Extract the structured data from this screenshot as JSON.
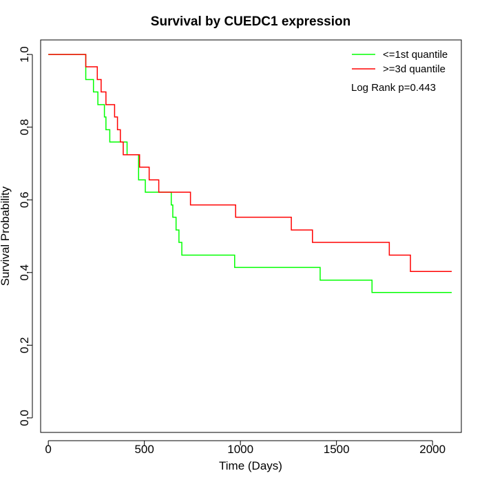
{
  "chart_data": {
    "type": "line",
    "title": "Survival by CUEDC1 expression",
    "xlabel": "Time (Days)",
    "ylabel": "Survival Probability",
    "xlim": [
      -40,
      2150
    ],
    "ylim": [
      -0.04,
      1.04
    ],
    "xticks": [
      0,
      500,
      1000,
      1500,
      2000
    ],
    "xtick_labels": [
      "0",
      "500",
      "1000",
      "1500",
      "2000"
    ],
    "yticks": [
      0.0,
      0.2,
      0.4,
      0.6,
      0.8,
      1.0
    ],
    "ytick_labels": [
      "0.0",
      "0.2",
      "0.4",
      "0.6",
      "0.8",
      "1.0"
    ],
    "grid": false,
    "legend_position": "top-right",
    "annotation": "Log Rank p=0.443",
    "series": [
      {
        "name": "<=1st quantile",
        "color": "#00ff00",
        "step": true,
        "x": [
          0,
          195,
          235,
          258,
          292,
          300,
          320,
          410,
          470,
          505,
          640,
          648,
          665,
          680,
          695,
          970,
          1415,
          1685,
          2100
        ],
        "y": [
          1.0,
          0.931,
          0.897,
          0.862,
          0.828,
          0.793,
          0.759,
          0.724,
          0.655,
          0.621,
          0.586,
          0.552,
          0.517,
          0.483,
          0.448,
          0.414,
          0.379,
          0.345,
          0.345
        ]
      },
      {
        "name": ">=3d quantile",
        "color": "#ff0000",
        "step": true,
        "x": [
          0,
          195,
          255,
          275,
          300,
          345,
          360,
          375,
          390,
          475,
          525,
          575,
          740,
          975,
          1265,
          1375,
          1775,
          1885,
          2100
        ],
        "y": [
          1.0,
          0.966,
          0.931,
          0.897,
          0.862,
          0.828,
          0.793,
          0.759,
          0.724,
          0.69,
          0.655,
          0.621,
          0.586,
          0.552,
          0.517,
          0.483,
          0.448,
          0.403,
          0.403
        ]
      }
    ]
  }
}
